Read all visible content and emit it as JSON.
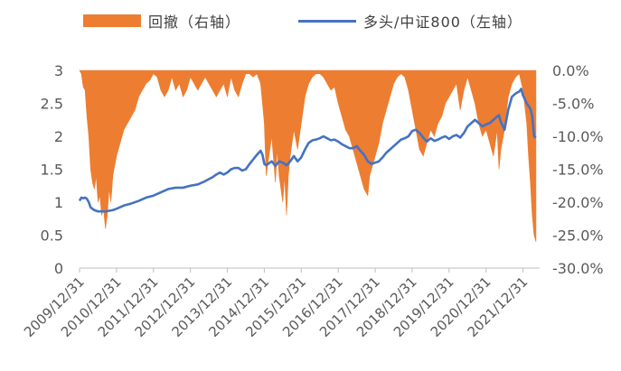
{
  "chart_data": {
    "type": "line",
    "legend": {
      "placement": "top",
      "items": [
        {
          "label": "回撤（右轴）",
          "kind": "area",
          "color": "#ED7D31"
        },
        {
          "label": "多头/中证800（左轴）",
          "kind": "line",
          "color": "#4472C4"
        }
      ]
    },
    "x_labels": [
      "2009/12/31",
      "2010/12/31",
      "2011/12/31",
      "2012/12/31",
      "2013/12/31",
      "2014/12/31",
      "2015/12/31",
      "2016/12/31",
      "2017/12/31",
      "2018/12/31",
      "2019/12/31",
      "2020/12/31",
      "2021/12/31"
    ],
    "y_left": {
      "ylim": [
        0,
        3
      ],
      "ticks": [
        "0",
        "0.5",
        "1",
        "1.5",
        "2",
        "2.5",
        "3"
      ]
    },
    "y_right": {
      "ylim": [
        -30,
        0
      ],
      "ticks": [
        "-30.0%",
        "-25.0%",
        "-20.0%",
        "-15.0%",
        "-10.0%",
        "-5.0%",
        "0.0%"
      ]
    },
    "series": [
      {
        "name": "多头/中证800（左轴）",
        "axis": "left",
        "color": "#4472C4",
        "points": [
          [
            0,
            1.02
          ],
          [
            0.05,
            1.07
          ],
          [
            0.1,
            1.06
          ],
          [
            0.15,
            1.07
          ],
          [
            0.2,
            1.05
          ],
          [
            0.25,
            1.0
          ],
          [
            0.3,
            0.92
          ],
          [
            0.4,
            0.88
          ],
          [
            0.5,
            0.86
          ],
          [
            0.6,
            0.86
          ],
          [
            0.7,
            0.86
          ],
          [
            0.8,
            0.87
          ],
          [
            0.9,
            0.88
          ],
          [
            1.0,
            0.9
          ],
          [
            1.2,
            0.95
          ],
          [
            1.4,
            0.98
          ],
          [
            1.6,
            1.02
          ],
          [
            1.8,
            1.07
          ],
          [
            2.0,
            1.1
          ],
          [
            2.2,
            1.15
          ],
          [
            2.4,
            1.2
          ],
          [
            2.6,
            1.22
          ],
          [
            2.8,
            1.22
          ],
          [
            3.0,
            1.25
          ],
          [
            3.2,
            1.27
          ],
          [
            3.4,
            1.32
          ],
          [
            3.6,
            1.38
          ],
          [
            3.7,
            1.42
          ],
          [
            3.8,
            1.45
          ],
          [
            3.9,
            1.42
          ],
          [
            4.0,
            1.45
          ],
          [
            4.1,
            1.5
          ],
          [
            4.2,
            1.52
          ],
          [
            4.3,
            1.52
          ],
          [
            4.4,
            1.48
          ],
          [
            4.5,
            1.5
          ],
          [
            4.6,
            1.58
          ],
          [
            4.7,
            1.65
          ],
          [
            4.8,
            1.72
          ],
          [
            4.9,
            1.78
          ],
          [
            4.95,
            1.72
          ],
          [
            5.0,
            1.58
          ],
          [
            5.05,
            1.56
          ],
          [
            5.1,
            1.58
          ],
          [
            5.2,
            1.62
          ],
          [
            5.3,
            1.55
          ],
          [
            5.4,
            1.62
          ],
          [
            5.5,
            1.6
          ],
          [
            5.6,
            1.56
          ],
          [
            5.7,
            1.62
          ],
          [
            5.8,
            1.7
          ],
          [
            5.9,
            1.62
          ],
          [
            6.0,
            1.68
          ],
          [
            6.1,
            1.8
          ],
          [
            6.2,
            1.9
          ],
          [
            6.3,
            1.94
          ],
          [
            6.4,
            1.95
          ],
          [
            6.5,
            1.97
          ],
          [
            6.6,
            2.0
          ],
          [
            6.7,
            1.97
          ],
          [
            6.8,
            1.94
          ],
          [
            6.9,
            1.95
          ],
          [
            7.0,
            1.92
          ],
          [
            7.1,
            1.88
          ],
          [
            7.2,
            1.85
          ],
          [
            7.3,
            1.82
          ],
          [
            7.4,
            1.82
          ],
          [
            7.5,
            1.85
          ],
          [
            7.6,
            1.78
          ],
          [
            7.7,
            1.72
          ],
          [
            7.8,
            1.62
          ],
          [
            7.9,
            1.58
          ],
          [
            8.0,
            1.6
          ],
          [
            8.1,
            1.62
          ],
          [
            8.2,
            1.68
          ],
          [
            8.3,
            1.75
          ],
          [
            8.4,
            1.8
          ],
          [
            8.5,
            1.85
          ],
          [
            8.6,
            1.9
          ],
          [
            8.7,
            1.95
          ],
          [
            8.8,
            1.97
          ],
          [
            8.9,
            2.0
          ],
          [
            9.0,
            2.08
          ],
          [
            9.1,
            2.1
          ],
          [
            9.2,
            2.05
          ],
          [
            9.3,
            1.98
          ],
          [
            9.4,
            1.92
          ],
          [
            9.5,
            1.97
          ],
          [
            9.6,
            1.93
          ],
          [
            9.7,
            1.95
          ],
          [
            9.8,
            1.98
          ],
          [
            9.9,
            2.0
          ],
          [
            10.0,
            1.96
          ],
          [
            10.1,
            2.0
          ],
          [
            10.2,
            2.02
          ],
          [
            10.3,
            1.98
          ],
          [
            10.4,
            2.05
          ],
          [
            10.5,
            2.15
          ],
          [
            10.6,
            2.2
          ],
          [
            10.7,
            2.25
          ],
          [
            10.8,
            2.2
          ],
          [
            10.9,
            2.15
          ],
          [
            11.0,
            2.18
          ],
          [
            11.1,
            2.2
          ],
          [
            11.2,
            2.25
          ],
          [
            11.3,
            2.3
          ],
          [
            11.35,
            2.32
          ],
          [
            11.4,
            2.22
          ],
          [
            11.5,
            2.1
          ],
          [
            11.6,
            2.4
          ],
          [
            11.7,
            2.6
          ],
          [
            11.8,
            2.65
          ],
          [
            11.9,
            2.68
          ],
          [
            11.95,
            2.72
          ],
          [
            12.0,
            2.62
          ],
          [
            12.1,
            2.5
          ],
          [
            12.2,
            2.42
          ],
          [
            12.25,
            2.3
          ],
          [
            12.3,
            2.0
          ],
          [
            12.35,
            1.98
          ]
        ]
      },
      {
        "name": "回撤（右轴）",
        "axis": "right",
        "color": "#ED7D31",
        "points": [
          [
            0,
            0
          ],
          [
            0.05,
            -0.5
          ],
          [
            0.1,
            -2.5
          ],
          [
            0.15,
            -3
          ],
          [
            0.2,
            -7
          ],
          [
            0.25,
            -10
          ],
          [
            0.3,
            -15
          ],
          [
            0.35,
            -17
          ],
          [
            0.4,
            -18
          ],
          [
            0.45,
            -16
          ],
          [
            0.5,
            -20
          ],
          [
            0.55,
            -19
          ],
          [
            0.6,
            -22
          ],
          [
            0.65,
            -21
          ],
          [
            0.7,
            -24
          ],
          [
            0.75,
            -22
          ],
          [
            0.8,
            -18
          ],
          [
            0.85,
            -20
          ],
          [
            0.9,
            -16
          ],
          [
            1.0,
            -13
          ],
          [
            1.1,
            -11
          ],
          [
            1.2,
            -9
          ],
          [
            1.3,
            -8
          ],
          [
            1.4,
            -7
          ],
          [
            1.5,
            -6
          ],
          [
            1.6,
            -4
          ],
          [
            1.7,
            -3
          ],
          [
            1.8,
            -2
          ],
          [
            1.9,
            -1.5
          ],
          [
            2.0,
            -0.5
          ],
          [
            2.1,
            -1
          ],
          [
            2.2,
            -3
          ],
          [
            2.3,
            -4
          ],
          [
            2.4,
            -3
          ],
          [
            2.5,
            -1
          ],
          [
            2.6,
            -3
          ],
          [
            2.7,
            -2
          ],
          [
            2.8,
            -4
          ],
          [
            2.9,
            -3
          ],
          [
            3.0,
            -1
          ],
          [
            3.1,
            -2
          ],
          [
            3.2,
            -3
          ],
          [
            3.3,
            -2
          ],
          [
            3.4,
            -1
          ],
          [
            3.5,
            -2
          ],
          [
            3.6,
            -3
          ],
          [
            3.7,
            -4
          ],
          [
            3.8,
            -3
          ],
          [
            3.9,
            -2
          ],
          [
            4.0,
            -4
          ],
          [
            4.1,
            -1
          ],
          [
            4.2,
            -3
          ],
          [
            4.3,
            -4
          ],
          [
            4.4,
            -2
          ],
          [
            4.5,
            -0.5
          ],
          [
            4.6,
            -0.5
          ],
          [
            4.7,
            -1
          ],
          [
            4.8,
            -0.5
          ],
          [
            4.9,
            -2
          ],
          [
            5.0,
            -8
          ],
          [
            5.05,
            -16
          ],
          [
            5.1,
            -14
          ],
          [
            5.2,
            -10
          ],
          [
            5.3,
            -17
          ],
          [
            5.35,
            -12
          ],
          [
            5.4,
            -16
          ],
          [
            5.5,
            -20
          ],
          [
            5.55,
            -16
          ],
          [
            5.6,
            -22
          ],
          [
            5.65,
            -16
          ],
          [
            5.7,
            -13
          ],
          [
            5.8,
            -9
          ],
          [
            5.9,
            -12
          ],
          [
            6.0,
            -8
          ],
          [
            6.1,
            -4
          ],
          [
            6.2,
            -2
          ],
          [
            6.3,
            -1
          ],
          [
            6.4,
            -0.5
          ],
          [
            6.5,
            -0.5
          ],
          [
            6.6,
            -1
          ],
          [
            6.7,
            -2
          ],
          [
            6.8,
            -3
          ],
          [
            6.9,
            -2.5
          ],
          [
            7.0,
            -5
          ],
          [
            7.1,
            -7
          ],
          [
            7.2,
            -9
          ],
          [
            7.3,
            -10
          ],
          [
            7.4,
            -12
          ],
          [
            7.5,
            -14
          ],
          [
            7.6,
            -16
          ],
          [
            7.7,
            -18
          ],
          [
            7.8,
            -19
          ],
          [
            7.85,
            -16
          ],
          [
            7.9,
            -15
          ],
          [
            8.0,
            -13
          ],
          [
            8.1,
            -11
          ],
          [
            8.2,
            -8
          ],
          [
            8.3,
            -6
          ],
          [
            8.4,
            -4
          ],
          [
            8.5,
            -2
          ],
          [
            8.6,
            -1
          ],
          [
            8.7,
            -0.5
          ],
          [
            8.8,
            -1
          ],
          [
            8.9,
            -3
          ],
          [
            9.0,
            -6
          ],
          [
            9.1,
            -9
          ],
          [
            9.2,
            -12
          ],
          [
            9.3,
            -13
          ],
          [
            9.4,
            -11
          ],
          [
            9.5,
            -9
          ],
          [
            9.6,
            -10
          ],
          [
            9.7,
            -8
          ],
          [
            9.8,
            -7
          ],
          [
            9.9,
            -5
          ],
          [
            10.0,
            -4
          ],
          [
            10.1,
            -3
          ],
          [
            10.2,
            -2
          ],
          [
            10.3,
            -6
          ],
          [
            10.4,
            -3
          ],
          [
            10.5,
            -1
          ],
          [
            10.6,
            -3
          ],
          [
            10.7,
            -5
          ],
          [
            10.8,
            -8
          ],
          [
            10.9,
            -10
          ],
          [
            11.0,
            -9
          ],
          [
            11.1,
            -11
          ],
          [
            11.2,
            -13
          ],
          [
            11.3,
            -9
          ],
          [
            11.35,
            -15
          ],
          [
            11.4,
            -12
          ],
          [
            11.5,
            -9
          ],
          [
            11.6,
            -4
          ],
          [
            11.7,
            -2
          ],
          [
            11.8,
            -1
          ],
          [
            11.9,
            -0.5
          ],
          [
            12.0,
            -3
          ],
          [
            12.1,
            -8
          ],
          [
            12.15,
            -13
          ],
          [
            12.2,
            -17
          ],
          [
            12.25,
            -22
          ],
          [
            12.3,
            -25
          ],
          [
            12.35,
            -26
          ]
        ]
      }
    ]
  }
}
